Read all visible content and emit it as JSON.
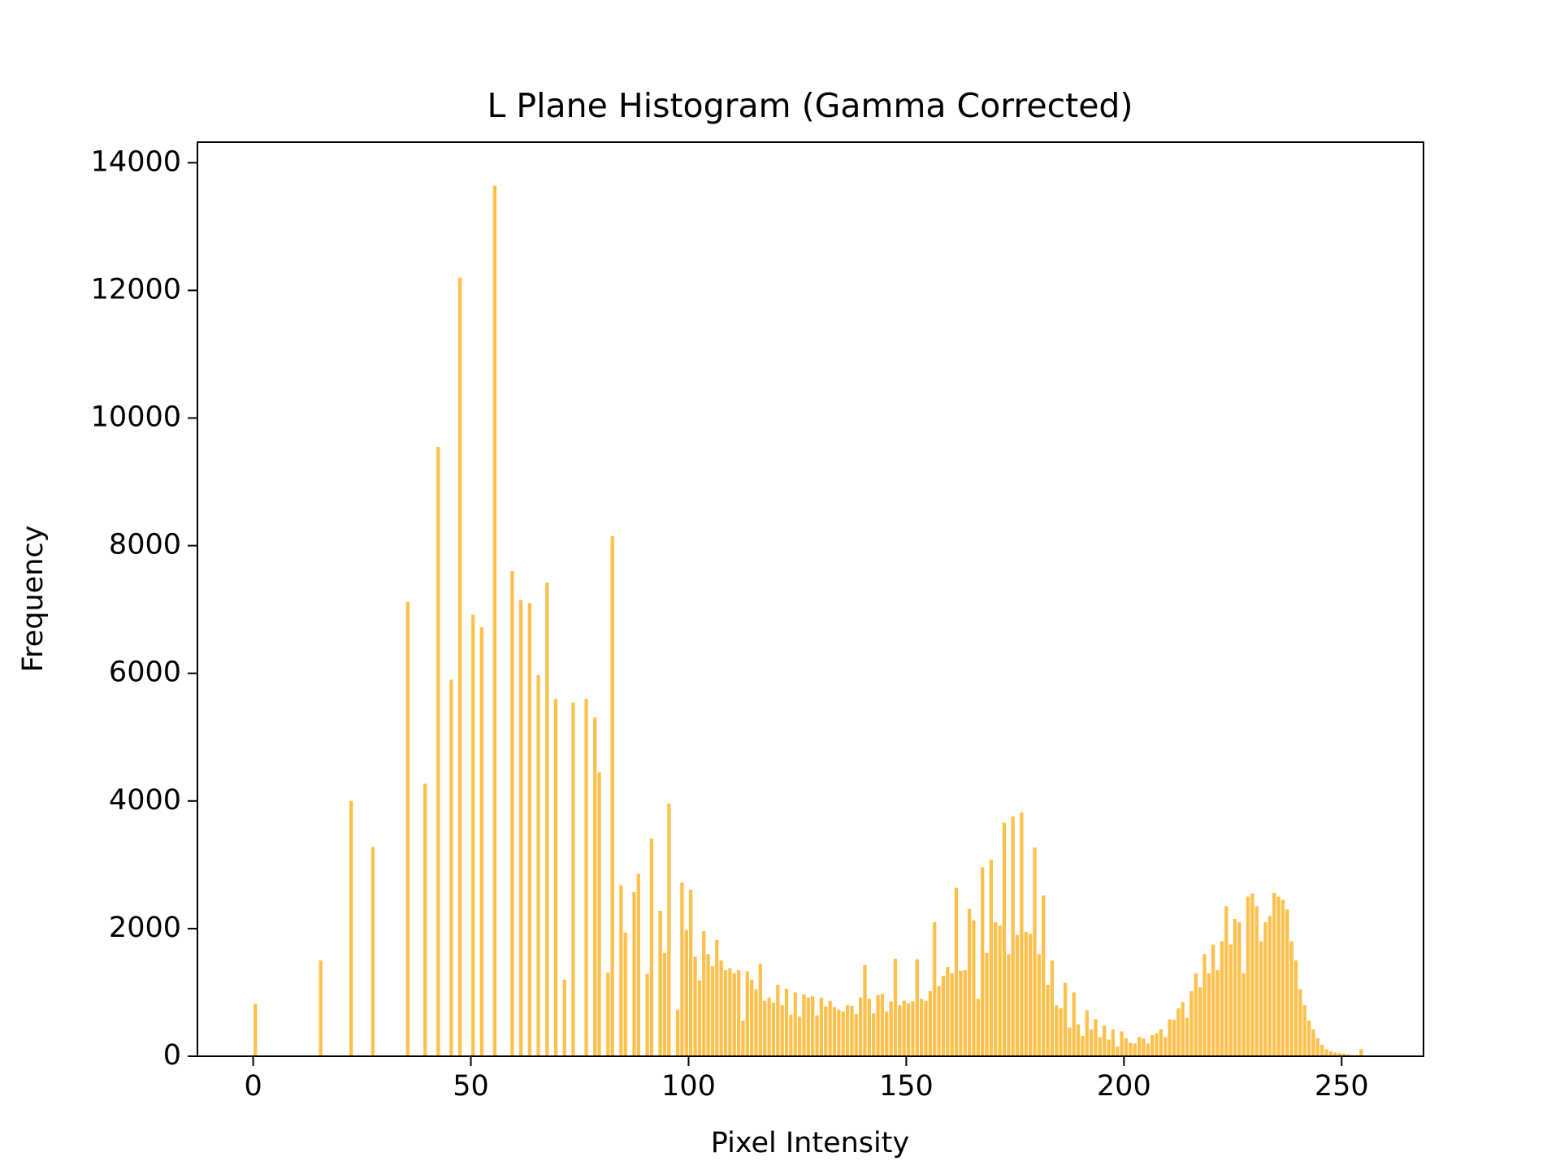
{
  "chart_data": {
    "type": "histogram",
    "title": "L Plane Histogram (Gamma Corrected)",
    "xlabel": "Pixel Intensity",
    "ylabel": "Frequency",
    "color": "#ffa500",
    "alpha": 0.7,
    "bins": [
      0,
      1,
      2,
      3,
      4,
      5,
      6,
      7,
      8,
      9,
      10,
      11,
      12,
      13,
      14,
      15,
      16,
      17,
      18,
      19,
      20,
      21,
      22,
      23,
      24,
      25,
      26,
      27,
      28,
      29,
      30,
      31,
      32,
      33,
      34,
      35,
      36,
      37,
      38,
      39,
      40,
      41,
      42,
      43,
      44,
      45,
      46,
      47,
      48,
      49,
      50,
      51,
      52,
      53,
      54,
      55,
      56,
      57,
      58,
      59,
      60,
      61,
      62,
      63,
      64,
      65,
      66,
      67,
      68,
      69,
      70,
      71,
      72,
      73,
      74,
      75,
      76,
      77,
      78,
      79,
      80,
      81,
      82,
      83,
      84,
      85,
      86,
      87,
      88,
      89,
      90,
      91,
      92,
      93,
      94,
      95,
      96,
      97,
      98,
      99,
      100,
      101,
      102,
      103,
      104,
      105,
      106,
      107,
      108,
      109,
      110,
      111,
      112,
      113,
      114,
      115,
      116,
      117,
      118,
      119,
      120,
      121,
      122,
      123,
      124,
      125,
      126,
      127,
      128,
      129,
      130,
      131,
      132,
      133,
      134,
      135,
      136,
      137,
      138,
      139,
      140,
      141,
      142,
      143,
      144,
      145,
      146,
      147,
      148,
      149,
      150,
      151,
      152,
      153,
      154,
      155,
      156,
      157,
      158,
      159,
      160,
      161,
      162,
      163,
      164,
      165,
      166,
      167,
      168,
      169,
      170,
      171,
      172,
      173,
      174,
      175,
      176,
      177,
      178,
      179,
      180,
      181,
      182,
      183,
      184,
      185,
      186,
      187,
      188,
      189,
      190,
      191,
      192,
      193,
      194,
      195,
      196,
      197,
      198,
      199,
      200,
      201,
      202,
      203,
      204,
      205,
      206,
      207,
      208,
      209,
      210,
      211,
      212,
      213,
      214,
      215,
      216,
      217,
      218,
      219,
      220,
      221,
      222,
      223,
      224,
      225,
      226,
      227,
      228,
      229,
      230,
      231,
      232,
      233,
      234,
      235,
      236,
      237,
      238,
      239,
      240,
      241,
      242,
      243,
      244,
      245,
      246,
      247,
      248,
      249,
      250,
      251,
      252,
      253,
      254,
      255,
      256
    ],
    "counts": [
      820,
      0,
      0,
      0,
      0,
      0,
      0,
      0,
      0,
      0,
      0,
      0,
      0,
      0,
      0,
      1500,
      0,
      0,
      0,
      0,
      0,
      0,
      4000,
      0,
      0,
      0,
      0,
      3280,
      0,
      0,
      0,
      0,
      0,
      0,
      0,
      7120,
      0,
      0,
      0,
      4270,
      0,
      0,
      9550,
      0,
      0,
      5900,
      0,
      12200,
      0,
      0,
      6920,
      0,
      6720,
      0,
      0,
      13640,
      0,
      0,
      0,
      7600,
      0,
      7150,
      0,
      7100,
      0,
      5970,
      0,
      7420,
      0,
      5600,
      0,
      1200,
      0,
      5540,
      0,
      0,
      5600,
      0,
      5310,
      4450,
      0,
      1310,
      8150,
      0,
      2680,
      1940,
      0,
      2570,
      2860,
      0,
      1290,
      3410,
      0,
      2280,
      1620,
      3960,
      0,
      730,
      2720,
      1980,
      2610,
      1560,
      1190,
      1960,
      1600,
      1410,
      1820,
      1500,
      1350,
      1380,
      1300,
      1350,
      560,
      1330,
      1200,
      1050,
      1450,
      870,
      920,
      840,
      1120,
      800,
      1060,
      650,
      1000,
      620,
      970,
      920,
      940,
      640,
      920,
      780,
      870,
      770,
      730,
      700,
      800,
      790,
      660,
      920,
      1430,
      900,
      670,
      960,
      980,
      700,
      860,
      1530,
      800,
      870,
      830,
      860,
      1520,
      900,
      870,
      1020,
      2100,
      1100,
      1260,
      1400,
      1300,
      2640,
      1340,
      1350,
      2310,
      2130,
      900,
      2960,
      1620,
      3080,
      2100,
      2050,
      3660,
      1600,
      3760,
      1900,
      3820,
      1950,
      1920,
      3270,
      1600,
      2520,
      1120,
      1500,
      800,
      750,
      1150,
      450,
      1000,
      500,
      320,
      720,
      420,
      580,
      300,
      480,
      260,
      420,
      150,
      390,
      280,
      210,
      200,
      300,
      280,
      200,
      330,
      360,
      420,
      300,
      580,
      570,
      750,
      850,
      600,
      1020,
      1300,
      1080,
      1600,
      1300,
      1750,
      1350,
      1800,
      2350,
      1750,
      2150,
      2100,
      1300,
      2500,
      2550,
      2350,
      1800,
      2100,
      2200,
      2560,
      2500,
      2450,
      2300,
      1800,
      1500,
      1050,
      800,
      560,
      420,
      280,
      180,
      110,
      80,
      60,
      50,
      40,
      30,
      20,
      20,
      110,
      0
    ],
    "xlim": [
      -12.8,
      268.8
    ],
    "ylim": [
      0,
      14322
    ],
    "xticks": [
      0,
      50,
      100,
      150,
      200,
      250
    ],
    "yticks": [
      0,
      2000,
      4000,
      6000,
      8000,
      10000,
      12000,
      14000
    ]
  }
}
